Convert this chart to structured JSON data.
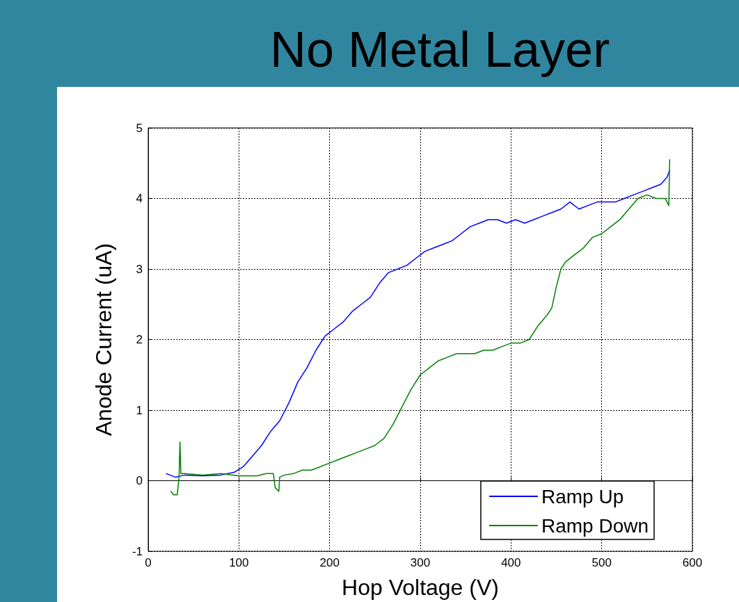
{
  "chart_data": {
    "type": "line",
    "title": "No Metal Layer",
    "xlabel": "Hop Voltage (V)",
    "ylabel": "Anode Current (uA)",
    "xlim": [
      0,
      600
    ],
    "xticks": [
      0,
      100,
      200,
      300,
      400,
      500,
      600
    ],
    "ylim": [
      -1,
      5
    ],
    "yticks": [
      -1,
      0,
      1,
      2,
      3,
      4,
      5
    ],
    "grid": true,
    "legend": "bottom right",
    "line_style": "solid",
    "marker": "none",
    "series": [
      {
        "name": "Ramp Up",
        "color": "#0000ff",
        "x": [
          20,
          30,
          40,
          60,
          80,
          95,
          105,
          115,
          125,
          135,
          145,
          155,
          165,
          175,
          185,
          195,
          205,
          215,
          225,
          235,
          245,
          255,
          265,
          275,
          285,
          295,
          305,
          315,
          325,
          335,
          345,
          355,
          365,
          375,
          385,
          395,
          405,
          415,
          425,
          435,
          445,
          455,
          465,
          475,
          485,
          495,
          505,
          515,
          525,
          535,
          545,
          555,
          565,
          572,
          575
        ],
        "values": [
          0.1,
          0.05,
          0.08,
          0.07,
          0.08,
          0.12,
          0.2,
          0.35,
          0.5,
          0.7,
          0.85,
          1.1,
          1.4,
          1.6,
          1.85,
          2.05,
          2.15,
          2.25,
          2.4,
          2.5,
          2.6,
          2.8,
          2.95,
          3.0,
          3.05,
          3.15,
          3.25,
          3.3,
          3.35,
          3.4,
          3.5,
          3.6,
          3.65,
          3.7,
          3.7,
          3.65,
          3.7,
          3.65,
          3.7,
          3.75,
          3.8,
          3.85,
          3.95,
          3.85,
          3.9,
          3.95,
          3.95,
          3.95,
          4.0,
          4.05,
          4.1,
          4.15,
          4.2,
          4.3,
          4.4
        ]
      },
      {
        "name": "Ramp Down",
        "color": "#008000",
        "x": [
          575,
          574,
          570,
          560,
          550,
          540,
          530,
          520,
          510,
          500,
          490,
          480,
          470,
          460,
          455,
          450,
          445,
          440,
          430,
          420,
          410,
          400,
          390,
          380,
          370,
          360,
          350,
          340,
          330,
          320,
          310,
          300,
          290,
          280,
          270,
          260,
          250,
          240,
          230,
          220,
          210,
          200,
          190,
          180,
          170,
          160,
          150,
          145,
          144,
          140,
          138,
          130,
          120,
          100,
          80,
          60,
          40,
          36,
          35,
          34,
          32,
          28,
          25
        ],
        "values": [
          4.55,
          3.9,
          4.0,
          4.0,
          4.05,
          4.0,
          3.85,
          3.7,
          3.6,
          3.5,
          3.45,
          3.3,
          3.2,
          3.1,
          3.0,
          2.75,
          2.45,
          2.35,
          2.2,
          2.0,
          1.95,
          1.95,
          1.9,
          1.85,
          1.85,
          1.8,
          1.8,
          1.8,
          1.75,
          1.7,
          1.6,
          1.5,
          1.3,
          1.05,
          0.8,
          0.6,
          0.5,
          0.45,
          0.4,
          0.35,
          0.3,
          0.25,
          0.2,
          0.15,
          0.15,
          0.1,
          0.08,
          0.05,
          -0.15,
          -0.1,
          0.1,
          0.1,
          0.07,
          0.07,
          0.1,
          0.08,
          0.1,
          0.1,
          0.55,
          0.05,
          -0.2,
          -0.2,
          -0.15
        ]
      }
    ]
  }
}
